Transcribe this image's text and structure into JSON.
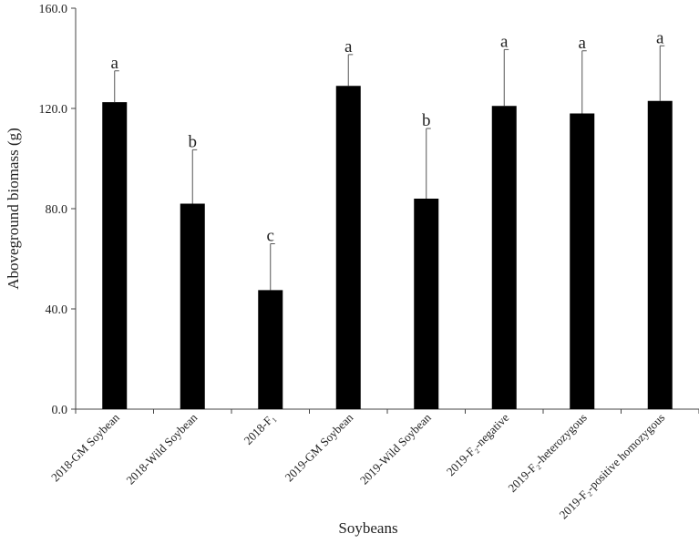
{
  "chart_data": {
    "type": "bar",
    "xlabel": "Soybeans",
    "ylabel": "Aboveground biomass (g)",
    "ylim": [
      0,
      160
    ],
    "yticks": [
      0,
      40,
      80,
      120,
      160
    ],
    "ytick_labels": [
      "0.0",
      "40.0",
      "80.0",
      "120.0",
      "160.0"
    ],
    "grid": false,
    "error_bars": "upper only",
    "colors": {
      "bar": "#000000",
      "axis": "#444444"
    },
    "categories": [
      "2018-GM Soybean",
      "2018-Wild Soybean",
      "2018-F₁",
      "2019-GM Soybean",
      "2019-Wild Soybean",
      "2019-F₂-negative",
      "2019-F₂-heterozygous",
      "2019-F₂-positive homozygous"
    ],
    "values": [
      122.5,
      82,
      47.5,
      129,
      84,
      121,
      118,
      123
    ],
    "errors": [
      12.5,
      21.5,
      18.5,
      12.5,
      28,
      22.5,
      25,
      22
    ],
    "significance": [
      "a",
      "b",
      "c",
      "a",
      "b",
      "a",
      "a",
      "a"
    ]
  }
}
